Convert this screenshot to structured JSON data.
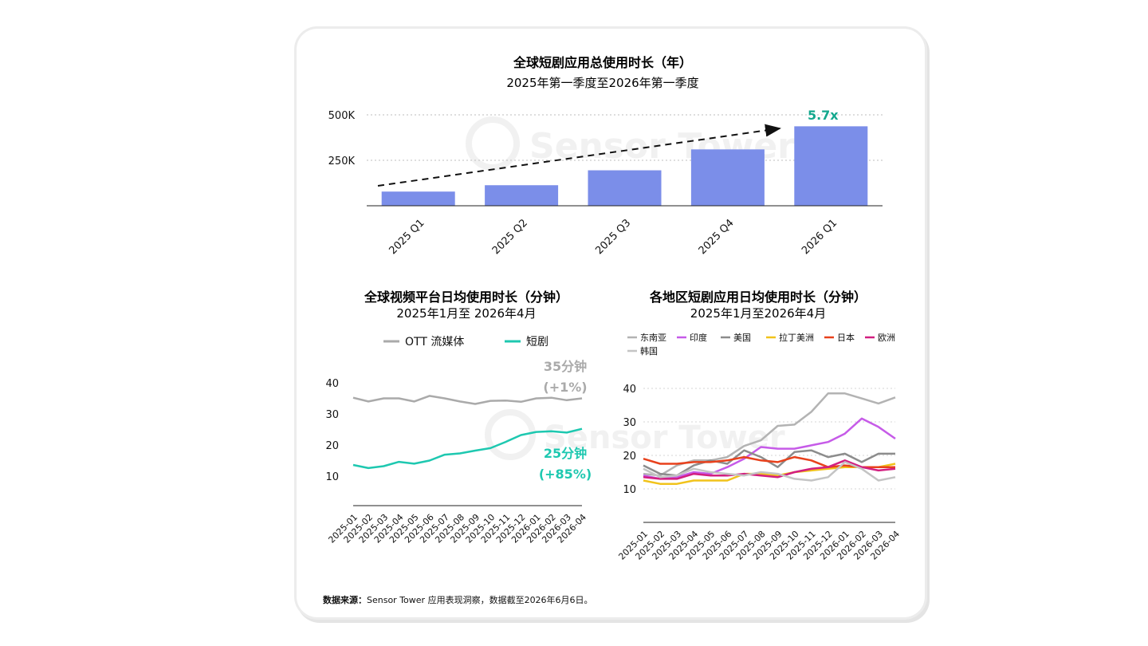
{
  "chart_data": [
    {
      "type": "bar",
      "title": "全球短剧应用总使用时长（年）",
      "subtitle": "2025年第一季度至2026年第一季度",
      "categories": [
        "2025 Q1",
        "2025 Q2",
        "2025 Q3",
        "2025 Q4",
        "2026 Q1"
      ],
      "values": [
        78000,
        113000,
        195000,
        310000,
        437000
      ],
      "yticks": [
        "250K",
        "500K"
      ],
      "ytick_values": [
        250000,
        500000
      ],
      "ylim": [
        0,
        500000
      ],
      "annotation": "5.7x",
      "annotation_color": "#14a88e",
      "bar_color": "#7b8ee9",
      "grid": true,
      "trend_arrow": true
    },
    {
      "type": "line",
      "title": "全球视频平台日均使用时长（分钟）",
      "subtitle": "2025年1月至 2026年4月",
      "x": [
        "2025-01",
        "2025-02",
        "2025-03",
        "2025-04",
        "2025-05",
        "2025-06",
        "2025-07",
        "2025-08",
        "2025-09",
        "2025-10",
        "2025-11",
        "2025-12",
        "2026-01",
        "2026-02",
        "2026-03",
        "2026-04"
      ],
      "ylim": [
        0,
        40
      ],
      "yticks": [
        10,
        20,
        30,
        40
      ],
      "legend_position": "top",
      "series": [
        {
          "name": "OTT 流媒体",
          "color": "#aaaaaa",
          "values": [
            35.2,
            34.0,
            35.0,
            35.0,
            34.0,
            35.8,
            35.0,
            34.0,
            33.2,
            34.2,
            34.3,
            33.9,
            35.0,
            35.2,
            34.4,
            35.0
          ],
          "end_label_1": "35分钟",
          "end_label_2": "(+1%)"
        },
        {
          "name": "短剧",
          "color": "#1ec8b0",
          "values": [
            13.6,
            12.6,
            13.2,
            14.6,
            14.0,
            15.0,
            16.9,
            17.3,
            18.2,
            19.0,
            21.0,
            23.2,
            24.2,
            24.4,
            24.0,
            25.2
          ],
          "end_label_1": "25分钟",
          "end_label_2": "(+85%)"
        }
      ]
    },
    {
      "type": "line",
      "title": "各地区短剧应用日均使用时长（分钟）",
      "subtitle": "2025年1月至2026年4月",
      "x": [
        "2025-01",
        "2025-02",
        "2025-03",
        "2025-04",
        "2025-05",
        "2025-06",
        "2025-07",
        "2025-08",
        "2025-09",
        "2025-10",
        "2025-11",
        "2025-12",
        "2026-01",
        "2026-02",
        "2026-03",
        "2026-04"
      ],
      "ylim": [
        0,
        40
      ],
      "yticks": [
        10,
        20,
        30,
        40
      ],
      "legend_position": "top",
      "series": [
        {
          "name": "东南亚",
          "color": "#b3b3b3",
          "values": [
            14.5,
            14.0,
            17.0,
            18.5,
            18.5,
            19.5,
            22.8,
            24.5,
            28.8,
            29.2,
            33.0,
            38.5,
            38.5,
            37.0,
            35.5,
            37.3
          ]
        },
        {
          "name": "印度",
          "color": "#c65be8",
          "values": [
            14.0,
            13.0,
            13.5,
            15.0,
            14.5,
            16.5,
            19.0,
            22.5,
            22.0,
            22.0,
            23.0,
            24.0,
            26.5,
            31.0,
            28.5,
            25.0
          ]
        },
        {
          "name": "美国",
          "color": "#8c8c8c",
          "values": [
            17.0,
            14.5,
            14.0,
            17.0,
            18.5,
            17.5,
            21.5,
            19.5,
            16.5,
            21.0,
            21.5,
            19.5,
            20.5,
            18.0,
            20.5,
            20.5
          ]
        },
        {
          "name": "拉丁美洲",
          "color": "#f1c31b",
          "values": [
            12.5,
            11.5,
            11.5,
            12.5,
            12.5,
            12.5,
            14.5,
            14.5,
            14.0,
            15.0,
            15.5,
            16.0,
            16.5,
            16.5,
            16.5,
            17.5
          ]
        },
        {
          "name": "日本",
          "color": "#e8411c",
          "values": [
            19.0,
            17.5,
            17.5,
            18.0,
            18.0,
            18.5,
            19.5,
            18.5,
            18.0,
            19.5,
            18.5,
            16.5,
            17.0,
            16.5,
            16.5,
            16.5
          ]
        },
        {
          "name": "欧洲",
          "color": "#d21f80",
          "values": [
            13.5,
            13.0,
            13.0,
            14.5,
            14.0,
            14.0,
            14.5,
            14.0,
            13.5,
            15.0,
            16.0,
            16.5,
            18.5,
            16.5,
            15.5,
            16.0
          ]
        },
        {
          "name": "韩国",
          "color": "#c4c4c4",
          "values": [
            16.0,
            13.5,
            14.0,
            16.0,
            15.0,
            14.5,
            14.0,
            15.0,
            14.5,
            13.0,
            12.5,
            13.5,
            18.0,
            16.0,
            12.5,
            13.5
          ]
        }
      ]
    }
  ],
  "footer": {
    "label": "数据来源：",
    "text": "Sensor Tower 应用表现洞察，数据截至2026年6月6日。"
  },
  "watermark": "Sensor Tower"
}
